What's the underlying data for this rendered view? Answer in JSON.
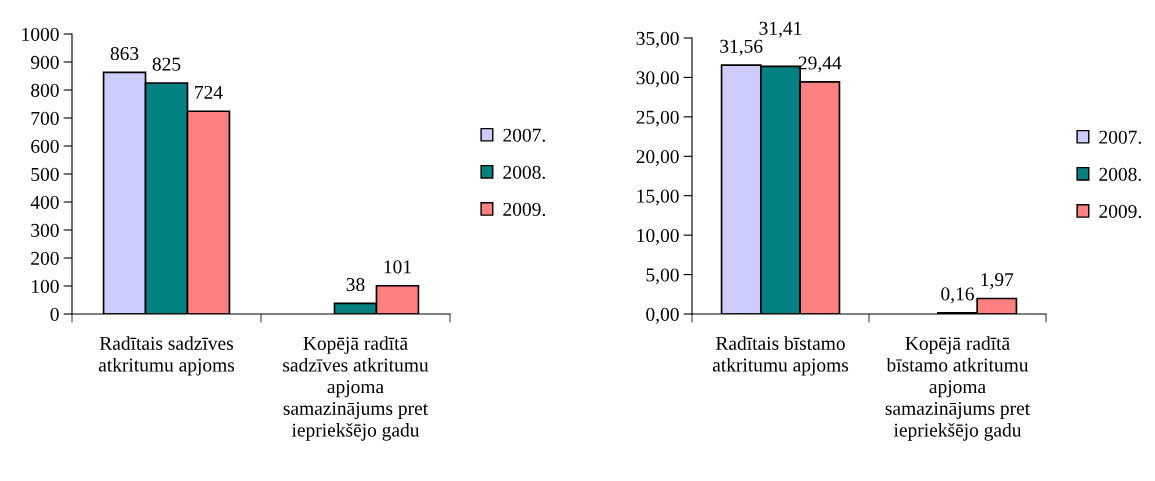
{
  "chart_data": [
    {
      "type": "bar",
      "categories": [
        "Radītais sadzīves atkritumu apjoms",
        "Kopējā radītā sadzīves atkritumu apjoma samazinājums pret iepriekšējo gadu"
      ],
      "series": [
        {
          "name": "2007.",
          "color": "#ccccff",
          "values": [
            863,
            null
          ]
        },
        {
          "name": "2008.",
          "color": "#008080",
          "values": [
            825,
            38
          ]
        },
        {
          "name": "2009.",
          "color": "#ff8080",
          "values": [
            724,
            101
          ]
        }
      ],
      "ylim": [
        0,
        1000
      ],
      "yticks": [
        0,
        100,
        200,
        300,
        400,
        500,
        600,
        700,
        800,
        900,
        1000
      ],
      "data_labels": true,
      "legend": "right"
    },
    {
      "type": "bar",
      "categories": [
        "Radītais bīstamo atkritumu apjoms",
        "Kopējā radītā bīstamo atkritumu apjoma samazinājums pret iepriekšējo gadu"
      ],
      "series": [
        {
          "name": "2007.",
          "color": "#ccccff",
          "values": [
            31.56,
            null
          ],
          "value_labels": [
            "31,56",
            null
          ]
        },
        {
          "name": "2008.",
          "color": "#008080",
          "values": [
            31.41,
            0.16
          ],
          "value_labels": [
            "31,41",
            "0,16"
          ]
        },
        {
          "name": "2009.",
          "color": "#ff8080",
          "values": [
            29.44,
            1.97
          ],
          "value_labels": [
            "29,44",
            "1,97"
          ]
        }
      ],
      "ylim": [
        0,
        35
      ],
      "yticks": [
        {
          "value": 0,
          "label": "0,00"
        },
        {
          "value": 5,
          "label": "5,00"
        },
        {
          "value": 10,
          "label": "10,00"
        },
        {
          "value": 15,
          "label": "15,00"
        },
        {
          "value": 20,
          "label": "20,00"
        },
        {
          "value": 25,
          "label": "25,00"
        },
        {
          "value": 30,
          "label": "30,00"
        },
        {
          "value": 35,
          "label": "35,00"
        }
      ],
      "legend": "right"
    }
  ]
}
